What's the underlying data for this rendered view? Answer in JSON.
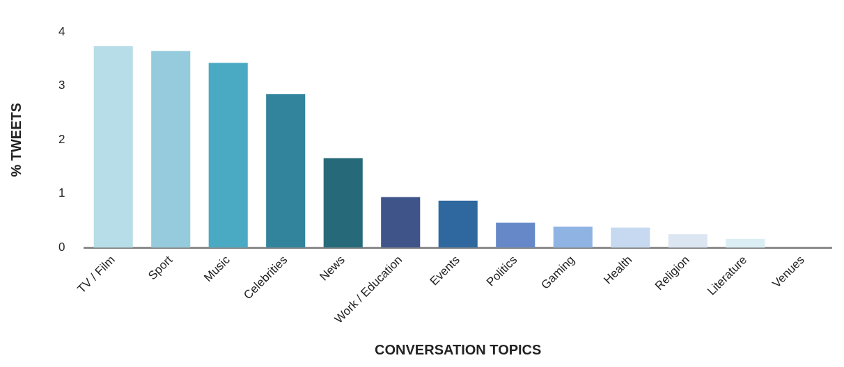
{
  "chart_data": {
    "type": "bar",
    "xlabel": "CONVERSATION TOPICS",
    "ylabel": "% TWEETS",
    "categories": [
      "TV / Film",
      "Sport",
      "Music",
      "Celebrities",
      "News",
      "Work / Education",
      "Events",
      "Politics",
      "Gaming",
      "Health",
      "Religion",
      "Literature",
      "Venues"
    ],
    "values": [
      3.74,
      3.65,
      3.43,
      2.85,
      1.66,
      0.94,
      0.87,
      0.46,
      0.39,
      0.37,
      0.25,
      0.16,
      0
    ],
    "colors": [
      "#b7dde8",
      "#95cbdc",
      "#4aaac4",
      "#31849b",
      "#266a7a",
      "#3f5489",
      "#2e689e",
      "#6788c8",
      "#8fb3e3",
      "#c6d9f1",
      "#dce6f2",
      "#daeef3",
      "#daeef3"
    ],
    "ylim": [
      0,
      4
    ],
    "yticks": [
      0,
      1,
      2,
      3,
      4
    ],
    "grid": false
  }
}
